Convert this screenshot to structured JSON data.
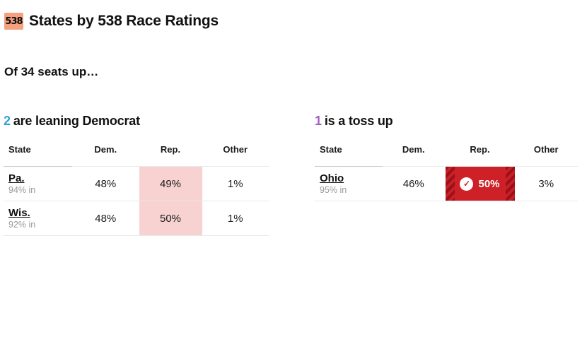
{
  "masthead": {
    "logo_text": "538",
    "title": "States by 538 Race Ratings"
  },
  "subtitle": "Of 34 seats up…",
  "icons": {
    "check": "✓"
  },
  "colors": {
    "dem_count_blue": "#30a2da",
    "tossup_count_purple": "#a05fc4",
    "rep_leaning_pink": "#f8d1d1",
    "rep_called_red": "#ce2127",
    "rep_called_stripe": "#9c1016",
    "logo_orange": "#f5a07e"
  },
  "sections": [
    {
      "count": "2",
      "label": "are leaning Democrat",
      "columns": [
        "State",
        "Dem.",
        "Rep.",
        "Other"
      ],
      "rows": [
        {
          "state": "Pa.",
          "reporting": "94% in",
          "dem": "48%",
          "rep": "49%",
          "other": "1%"
        },
        {
          "state": "Wis.",
          "reporting": "92% in",
          "dem": "48%",
          "rep": "50%",
          "other": "1%"
        }
      ]
    },
    {
      "count": "1",
      "label": "is a toss up",
      "columns": [
        "State",
        "Dem.",
        "Rep.",
        "Other"
      ],
      "rows": [
        {
          "state": "Ohio",
          "reporting": "95% in",
          "dem": "46%",
          "rep": "50%",
          "other": "3%"
        }
      ]
    }
  ]
}
